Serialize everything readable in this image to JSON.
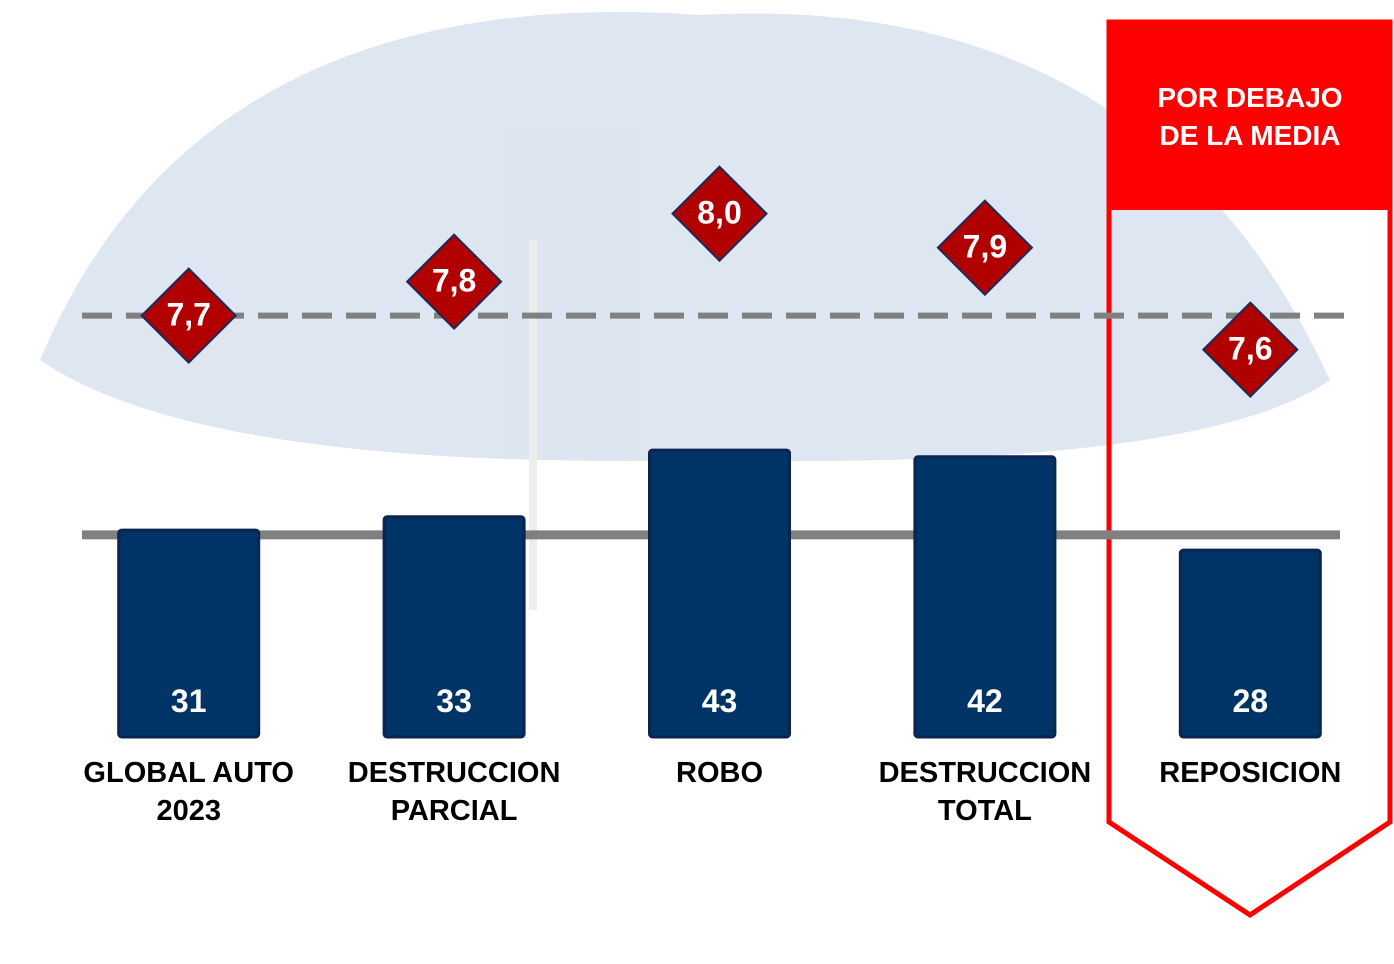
{
  "chart_data": {
    "type": "bar",
    "categories": [
      "GLOBAL AUTO\n2023",
      "DESTRUCCION\nPARCIAL",
      "ROBO",
      "DESTRUCCION\nTOTAL",
      "REPOSICION"
    ],
    "series": [
      {
        "color": "#003366",
        "values": [
          31,
          33,
          43,
          42,
          28
        ]
      },
      {
        "color": "#b00000",
        "axis": "y2",
        "marker": "diamond",
        "values": [
          7.7,
          7.8,
          8.0,
          7.9,
          7.6
        ],
        "value_labels": [
          "7,7",
          "7,8",
          "8,0",
          "7,9",
          "7,6"
        ]
      }
    ],
    "ylim": [
      0,
      110
    ],
    "y2lim": [
      6.46,
      8.62
    ],
    "reference_lines": [
      {
        "value": 30.3,
        "axis": "y",
        "style": "solid",
        "color": "#808080"
      },
      {
        "value": 7.7,
        "axis": "y2",
        "style": "dashed",
        "color": "#808080"
      }
    ],
    "annotation": "POR DEBAJO\nDE LA MEDIA"
  }
}
